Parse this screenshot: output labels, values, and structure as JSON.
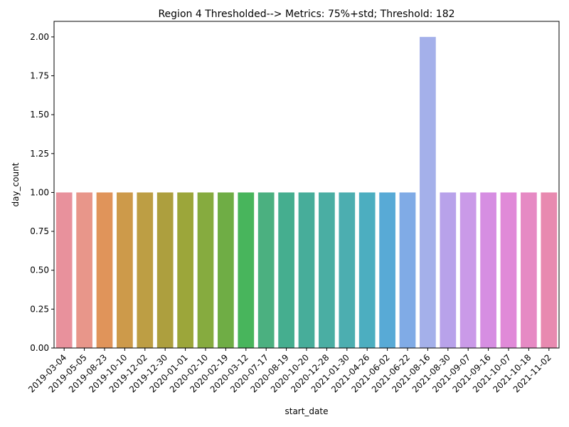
{
  "chart_data": {
    "type": "bar",
    "title": "Region 4 Thresholded--> Metrics: 75%+std; Threshold: 182",
    "xlabel": "start_date",
    "ylabel": "day_count",
    "ylim": [
      0,
      2.1
    ],
    "yticks": [
      "0.00",
      "0.25",
      "0.50",
      "0.75",
      "1.00",
      "1.25",
      "1.50",
      "1.75",
      "2.00"
    ],
    "categories": [
      "2019-03-04",
      "2019-05-05",
      "2019-08-23",
      "2019-10-10",
      "2019-12-02",
      "2019-12-30",
      "2020-01-01",
      "2020-02-10",
      "2020-02-19",
      "2020-03-12",
      "2020-07-17",
      "2020-08-19",
      "2020-10-20",
      "2020-12-28",
      "2021-01-30",
      "2021-04-26",
      "2021-06-02",
      "2021-06-22",
      "2021-08-16",
      "2021-08-30",
      "2021-09-07",
      "2021-09-16",
      "2021-10-07",
      "2021-10-18",
      "2021-11-02"
    ],
    "values": [
      1,
      1,
      1,
      1,
      1,
      1,
      1,
      1,
      1,
      1,
      1,
      1,
      1,
      1,
      1,
      1,
      1,
      1,
      2,
      1,
      1,
      1,
      1,
      1,
      1
    ],
    "colors": [
      "#e8919c",
      "#e8968a",
      "#e0945a",
      "#cd9a4a",
      "#bd9e44",
      "#ad9f3e",
      "#9ca63a",
      "#86ab3f",
      "#6fad45",
      "#48b55c",
      "#4bb080",
      "#45ae8f",
      "#47ad9a",
      "#4aaea3",
      "#4caeb0",
      "#4caec0",
      "#58aad6",
      "#80abe6",
      "#a4b0ea",
      "#b8a2ea",
      "#ca9ae8",
      "#d68ee2",
      "#e08ad8",
      "#e68ac4",
      "#e88ab0"
    ],
    "grid": false,
    "legend": false
  }
}
